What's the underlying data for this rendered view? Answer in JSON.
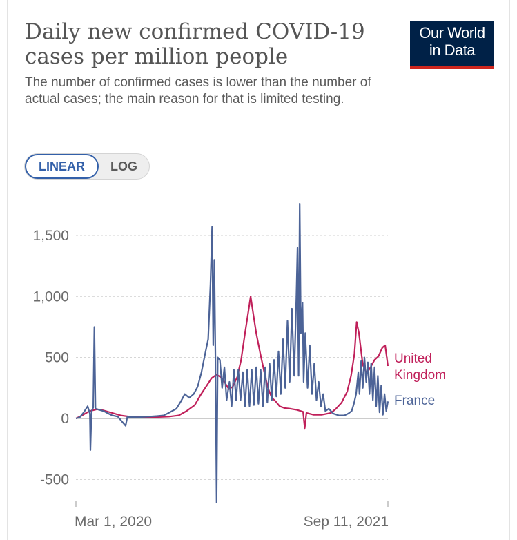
{
  "header": {
    "title": "Daily new confirmed COVID-19 cases per million people",
    "subtitle": "The number of confirmed cases is lower than the number of actual cases; the main reason for that is limited testing."
  },
  "logo": {
    "line1": "Our World",
    "line2": "in Data",
    "bg_color": "#002147",
    "accent_color": "#ce261e"
  },
  "scale_toggle": {
    "linear_label": "LINEAR",
    "log_label": "LOG",
    "selected": "LINEAR"
  },
  "colors": {
    "uk": "#c0205a",
    "france": "#4c6397",
    "grid": "#d0d0d0",
    "axis_text": "#6b6b6b"
  },
  "chart_data": {
    "type": "line",
    "title": "Daily new confirmed COVID-19 cases per million people",
    "y_ticks": [
      -500,
      0,
      500,
      1000,
      1500
    ],
    "y_tick_labels": [
      "-500",
      "0",
      "500",
      "1,000",
      "1,500"
    ],
    "ylim": [
      -680,
      1760
    ],
    "x_tick_labels": [
      "Mar 1, 2020",
      "Sep 11, 2021"
    ],
    "x_range": [
      "2020-03-01",
      "2021-09-11"
    ],
    "grid": true,
    "legend": "right-end labels",
    "series": [
      {
        "name": "United Kingdom",
        "label_lines": [
          "United",
          "Kingdom"
        ],
        "points": [
          [
            "2020-03-01",
            0
          ],
          [
            "2020-03-10",
            20
          ],
          [
            "2020-03-25",
            60
          ],
          [
            "2020-04-08",
            75
          ],
          [
            "2020-04-20",
            65
          ],
          [
            "2020-05-05",
            45
          ],
          [
            "2020-05-20",
            25
          ],
          [
            "2020-06-05",
            15
          ],
          [
            "2020-06-25",
            10
          ],
          [
            "2020-07-20",
            10
          ],
          [
            "2020-08-15",
            15
          ],
          [
            "2020-09-01",
            25
          ],
          [
            "2020-09-15",
            60
          ],
          [
            "2020-09-30",
            110
          ],
          [
            "2020-10-10",
            190
          ],
          [
            "2020-10-20",
            260
          ],
          [
            "2020-10-30",
            330
          ],
          [
            "2020-11-08",
            360
          ],
          [
            "2020-11-15",
            340
          ],
          [
            "2020-11-22",
            300
          ],
          [
            "2020-11-30",
            240
          ],
          [
            "2020-12-07",
            260
          ],
          [
            "2020-12-15",
            340
          ],
          [
            "2020-12-22",
            480
          ],
          [
            "2020-12-29",
            700
          ],
          [
            "2021-01-04",
            880
          ],
          [
            "2021-01-08",
            1000
          ],
          [
            "2021-01-12",
            880
          ],
          [
            "2021-01-18",
            700
          ],
          [
            "2021-01-25",
            540
          ],
          [
            "2021-02-01",
            390
          ],
          [
            "2021-02-08",
            250
          ],
          [
            "2021-02-15",
            170
          ],
          [
            "2021-02-22",
            140
          ],
          [
            "2021-03-01",
            100
          ],
          [
            "2021-03-10",
            85
          ],
          [
            "2021-03-20",
            80
          ],
          [
            "2021-04-01",
            70
          ],
          [
            "2021-04-12",
            55
          ],
          [
            "2021-04-15",
            -80
          ],
          [
            "2021-04-18",
            45
          ],
          [
            "2021-05-01",
            30
          ],
          [
            "2021-05-15",
            30
          ],
          [
            "2021-06-01",
            45
          ],
          [
            "2021-06-10",
            80
          ],
          [
            "2021-06-20",
            130
          ],
          [
            "2021-06-30",
            220
          ],
          [
            "2021-07-07",
            350
          ],
          [
            "2021-07-13",
            530
          ],
          [
            "2021-07-17",
            790
          ],
          [
            "2021-07-21",
            700
          ],
          [
            "2021-07-28",
            440
          ],
          [
            "2021-08-04",
            370
          ],
          [
            "2021-08-11",
            420
          ],
          [
            "2021-08-18",
            480
          ],
          [
            "2021-08-25",
            510
          ],
          [
            "2021-09-01",
            580
          ],
          [
            "2021-09-06",
            600
          ],
          [
            "2021-09-11",
            430
          ]
        ]
      },
      {
        "name": "France",
        "label_lines": [
          "France"
        ],
        "points": [
          [
            "2020-03-01",
            0
          ],
          [
            "2020-03-08",
            10
          ],
          [
            "2020-03-15",
            50
          ],
          [
            "2020-03-22",
            100
          ],
          [
            "2020-03-26",
            40
          ],
          [
            "2020-03-27",
            -260
          ],
          [
            "2020-03-29",
            60
          ],
          [
            "2020-04-01",
            90
          ],
          [
            "2020-04-03",
            750
          ],
          [
            "2020-04-05",
            80
          ],
          [
            "2020-04-12",
            70
          ],
          [
            "2020-04-20",
            60
          ],
          [
            "2020-04-28",
            40
          ],
          [
            "2020-05-05",
            25
          ],
          [
            "2020-05-15",
            15
          ],
          [
            "2020-05-29",
            -60
          ],
          [
            "2020-06-01",
            12
          ],
          [
            "2020-06-20",
            10
          ],
          [
            "2020-07-10",
            15
          ],
          [
            "2020-07-25",
            20
          ],
          [
            "2020-08-05",
            25
          ],
          [
            "2020-08-12",
            40
          ],
          [
            "2020-08-20",
            60
          ],
          [
            "2020-08-28",
            80
          ],
          [
            "2020-09-05",
            140
          ],
          [
            "2020-09-12",
            200
          ],
          [
            "2020-09-20",
            170
          ],
          [
            "2020-09-28",
            200
          ],
          [
            "2020-10-05",
            260
          ],
          [
            "2020-10-12",
            380
          ],
          [
            "2020-10-18",
            520
          ],
          [
            "2020-10-24",
            650
          ],
          [
            "2020-10-28",
            1100
          ],
          [
            "2020-10-31",
            1570
          ],
          [
            "2020-11-02",
            600
          ],
          [
            "2020-11-04",
            1300
          ],
          [
            "2020-11-06",
            500
          ],
          [
            "2020-11-08",
            -690
          ],
          [
            "2020-11-10",
            500
          ],
          [
            "2020-11-14",
            480
          ],
          [
            "2020-11-18",
            250
          ],
          [
            "2020-11-22",
            420
          ],
          [
            "2020-11-26",
            150
          ],
          [
            "2020-12-01",
            300
          ],
          [
            "2020-12-05",
            100
          ],
          [
            "2020-12-09",
            400
          ],
          [
            "2020-12-13",
            150
          ],
          [
            "2020-12-17",
            400
          ],
          [
            "2020-12-21",
            150
          ],
          [
            "2020-12-25",
            380
          ],
          [
            "2020-12-29",
            100
          ],
          [
            "2021-01-02",
            400
          ],
          [
            "2021-01-06",
            100
          ],
          [
            "2021-01-10",
            400
          ],
          [
            "2021-01-14",
            110
          ],
          [
            "2021-01-18",
            420
          ],
          [
            "2021-01-22",
            120
          ],
          [
            "2021-01-26",
            400
          ],
          [
            "2021-01-30",
            100
          ],
          [
            "2021-02-03",
            420
          ],
          [
            "2021-02-07",
            130
          ],
          [
            "2021-02-11",
            450
          ],
          [
            "2021-02-15",
            150
          ],
          [
            "2021-02-19",
            480
          ],
          [
            "2021-02-23",
            180
          ],
          [
            "2021-02-27",
            550
          ],
          [
            "2021-03-03",
            200
          ],
          [
            "2021-03-07",
            650
          ],
          [
            "2021-03-11",
            250
          ],
          [
            "2021-03-15",
            800
          ],
          [
            "2021-03-19",
            300
          ],
          [
            "2021-03-23",
            900
          ],
          [
            "2021-03-27",
            350
          ],
          [
            "2021-03-31",
            1000
          ],
          [
            "2021-04-02",
            1400
          ],
          [
            "2021-04-04",
            350
          ],
          [
            "2021-04-06",
            1760
          ],
          [
            "2021-04-08",
            700
          ],
          [
            "2021-04-11",
            950
          ],
          [
            "2021-04-13",
            300
          ],
          [
            "2021-04-16",
            700
          ],
          [
            "2021-04-20",
            250
          ],
          [
            "2021-04-24",
            600
          ],
          [
            "2021-04-28",
            200
          ],
          [
            "2021-05-02",
            450
          ],
          [
            "2021-05-06",
            150
          ],
          [
            "2021-05-10",
            300
          ],
          [
            "2021-05-14",
            100
          ],
          [
            "2021-05-18",
            200
          ],
          [
            "2021-05-22",
            60
          ],
          [
            "2021-05-28",
            80
          ],
          [
            "2021-06-05",
            40
          ],
          [
            "2021-06-15",
            25
          ],
          [
            "2021-06-25",
            25
          ],
          [
            "2021-07-02",
            40
          ],
          [
            "2021-07-08",
            60
          ],
          [
            "2021-07-12",
            120
          ],
          [
            "2021-07-16",
            200
          ],
          [
            "2021-07-20",
            380
          ],
          [
            "2021-07-22",
            200
          ],
          [
            "2021-07-25",
            470
          ],
          [
            "2021-07-28",
            250
          ],
          [
            "2021-07-31",
            500
          ],
          [
            "2021-08-03",
            300
          ],
          [
            "2021-08-06",
            460
          ],
          [
            "2021-08-09",
            200
          ],
          [
            "2021-08-12",
            450
          ],
          [
            "2021-08-15",
            150
          ],
          [
            "2021-08-18",
            420
          ],
          [
            "2021-08-21",
            100
          ],
          [
            "2021-08-24",
            350
          ],
          [
            "2021-08-27",
            50
          ],
          [
            "2021-08-30",
            270
          ],
          [
            "2021-09-02",
            30
          ],
          [
            "2021-09-05",
            200
          ],
          [
            "2021-09-08",
            60
          ],
          [
            "2021-09-11",
            140
          ]
        ]
      }
    ]
  }
}
